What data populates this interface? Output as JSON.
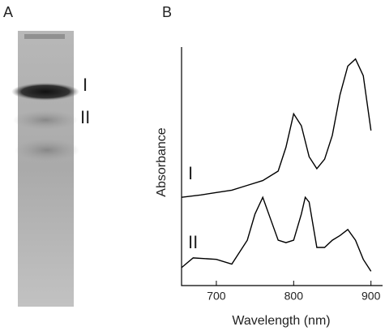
{
  "panel_a": {
    "label": "A",
    "band_labels": [
      "I",
      "II"
    ]
  },
  "chart_data": {
    "type": "line",
    "panel_label": "B",
    "x_label": "Wavelength (nm)",
    "y_label": "Absorbance",
    "xlim": [
      655,
      915
    ],
    "xticks": [
      700,
      800,
      900
    ],
    "ylim": [
      0,
      100
    ],
    "series": [
      {
        "name": "I",
        "color": "#000000",
        "x": [
          655,
          680,
          700,
          720,
          740,
          760,
          780,
          790,
          800,
          810,
          820,
          830,
          840,
          850,
          860,
          870,
          880,
          890,
          900
        ],
        "values": [
          37,
          38,
          39,
          40,
          42,
          44,
          48,
          58,
          72,
          67,
          54,
          49,
          53,
          63,
          80,
          92,
          95,
          88,
          65
        ]
      },
      {
        "name": "II",
        "color": "#000000",
        "x": [
          655,
          670,
          700,
          720,
          740,
          750,
          760,
          770,
          780,
          790,
          800,
          810,
          815,
          820,
          830,
          840,
          850,
          860,
          870,
          880,
          890,
          900
        ],
        "values": [
          7.5,
          11.6,
          11,
          9,
          19,
          30,
          37,
          28,
          19,
          18,
          19,
          30,
          37,
          35,
          16,
          16,
          19,
          21,
          23.5,
          19,
          11,
          6
        ]
      }
    ]
  }
}
